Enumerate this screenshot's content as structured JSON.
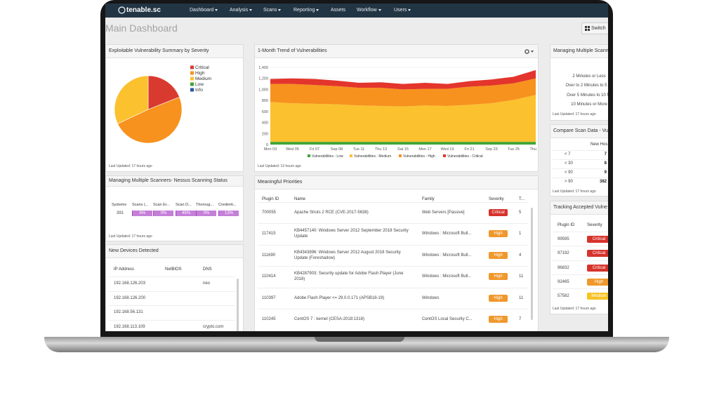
{
  "nav": {
    "logo": "tenable.sc",
    "menu": [
      "Dashboard",
      "Analysis",
      "Scans",
      "Reporting",
      "Assets",
      "Workflow",
      "Users"
    ],
    "dropdown": [
      true,
      true,
      true,
      true,
      false,
      true,
      true
    ]
  },
  "page_title": "Main Dashboard",
  "switch_button": "Switch",
  "severity_colors": {
    "Critical": "#d6332b",
    "High": "#f0982c",
    "Medium": "#f6c326"
  },
  "chart_data": [
    {
      "type": "pie",
      "title": "Exploitable Vulnerability Summary by Severity",
      "categories": [
        "Critical",
        "High",
        "Medium",
        "Low",
        "Info"
      ],
      "values": [
        19,
        49,
        32,
        0,
        0
      ],
      "colors": [
        "#d93a30",
        "#f7921e",
        "#fcc12f",
        "#3fa535",
        "#2a55a6"
      ],
      "last_updated": "Last Updated: 17 hours ago"
    },
    {
      "type": "area",
      "stacked": true,
      "title": "1-Month Trend of Vulnerabilities",
      "categories": [
        "Mon 03",
        "Wed 05",
        "Fri 07",
        "Sep 08",
        "Tue 11",
        "Thu 13",
        "Sat 15",
        "Mon 17",
        "Wed 19",
        "Fri 21",
        "Sep 23",
        "Tue 25",
        "Thu 27"
      ],
      "series": [
        {
          "name": "Vulnerabilities - Low",
          "color": "#3fa535",
          "values": [
            50,
            50,
            50,
            50,
            50,
            50,
            50,
            50,
            50,
            50,
            50,
            50,
            50
          ]
        },
        {
          "name": "Vulnerabilities - Medium",
          "color": "#fcc12f",
          "values": [
            720,
            700,
            690,
            680,
            660,
            650,
            640,
            660,
            650,
            670,
            700,
            760,
            850
          ]
        },
        {
          "name": "Vulnerabilities - High",
          "color": "#f7921e",
          "values": [
            330,
            350,
            340,
            330,
            320,
            330,
            310,
            300,
            310,
            330,
            320,
            300,
            300
          ]
        },
        {
          "name": "Vulnerabilities - Critical",
          "color": "#e3352c",
          "values": [
            90,
            100,
            110,
            100,
            90,
            100,
            100,
            110,
            90,
            100,
            110,
            120,
            150
          ]
        }
      ],
      "ylim": [
        0,
        1400
      ],
      "yticks": [
        0,
        200,
        400,
        600,
        800,
        {
          "value": 1000,
          "label": "1,000"
        },
        {
          "value": 1200,
          "label": "1,200"
        },
        {
          "value": 1400,
          "label": "1,400"
        }
      ],
      "grid": true,
      "last_updated": "Last Updated: 13 hours ago"
    }
  ],
  "scanner_status": {
    "title": "Managing Multiple Scanners- Nessus Scanning Status",
    "columns": [
      "Systems",
      "Scans (...",
      "Scan Er...",
      "Scan D...",
      "Thoroug...",
      "Credenti..."
    ],
    "row": [
      "391",
      "6%",
      "0%",
      "45%",
      "0%",
      "13%"
    ],
    "last_updated": "Last Updated: 17 hours ago"
  },
  "new_devices": {
    "title": "New Devices Detected",
    "columns": [
      "IP Address",
      "NetBIOS",
      "DNS"
    ],
    "rows": [
      {
        "ip": "192.168.126.203",
        "dns": "neo"
      },
      {
        "ip": "192.168.126.200"
      },
      {
        "ip": "192.168.56.131"
      },
      {
        "ip": "192.168.113.109",
        "dns": "crypto.com"
      }
    ]
  },
  "priorities": {
    "title": "Meaningful Priorities",
    "columns": [
      "Plugin ID",
      "Name",
      "Family",
      "Severity",
      "T..."
    ],
    "rows": [
      {
        "plugin_id": "700055",
        "name": "Apache Struts 2 RCE (CVE-2017-5638)",
        "family": "Web Servers [Passive]",
        "severity": "Critical",
        "total": "5"
      },
      {
        "plugin_id": "117415",
        "name": "KB4457140: Windows Server 2012 September 2018 Security Update",
        "family": "Windows : Microsoft Bull...",
        "severity": "High",
        "total": "1"
      },
      {
        "plugin_id": "111690",
        "name": "KB4343896: Windows Server 2012 August 2018 Security Update (Foreshadow)",
        "family": "Windows : Microsoft Bull...",
        "severity": "High",
        "total": "4"
      },
      {
        "plugin_id": "110414",
        "name": "KB4287903: Security update for Adobe Flash Player (June 2018)",
        "family": "Windows : Microsoft Bull...",
        "severity": "High",
        "total": "11"
      },
      {
        "plugin_id": "110397",
        "name": "Adobe Flash Player <= 29.0.0.171 (APSB18-19)",
        "family": "Windows",
        "severity": "High",
        "total": "11"
      },
      {
        "plugin_id": "110245",
        "name": "CentOS 7 : kernel (CESA-2018:1318)",
        "family": "CentOS Local Security C...",
        "severity": "High",
        "total": "7"
      }
    ]
  },
  "scan_duration": {
    "title": "Managing Multiple Scann",
    "items": [
      "2 Minutes or Less",
      "Over to 2 Minutes to 5 Mi",
      "Over 5 Minutes to 10 Mi",
      "10 Minutes or More"
    ],
    "last_updated": "Last Updated: 17 hours ago"
  },
  "compare_scan": {
    "title": "Compare Scan Data - Vu",
    "column": "New Hos",
    "rows": [
      {
        "label": "< 7",
        "value": "7"
      },
      {
        "label": "< 30",
        "value": "8"
      },
      {
        "label": "< 90",
        "value": "9"
      },
      {
        "label": "> 90",
        "value": "382"
      }
    ],
    "last_updated": "Last Updated: 17 hours ago"
  },
  "accepted": {
    "title": "Tracking Accepted Vulne",
    "columns": [
      "Plugin ID",
      "Severity"
    ],
    "rows": [
      {
        "plugin_id": "99595",
        "severity": "Critical"
      },
      {
        "plugin_id": "97192",
        "severity": "Critical"
      },
      {
        "plugin_id": "96832",
        "severity": "Critical"
      },
      {
        "plugin_id": "92465",
        "severity": "High"
      },
      {
        "plugin_id": "57582",
        "severity": "Medium"
      }
    ],
    "last_updated": "Last Updated: 17 hours ago"
  }
}
